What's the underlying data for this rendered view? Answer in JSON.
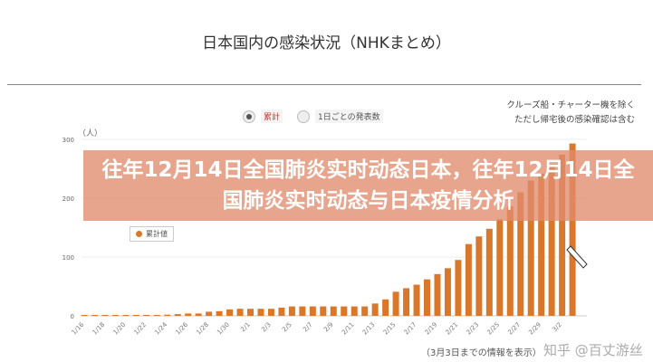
{
  "header": {
    "title": "日本国内の感染状況（NHKまとめ）",
    "note_line1": "クルーズ船・チャーター機を除く",
    "note_line2": "ただし帰宅後の感染確認は含む"
  },
  "toggle": {
    "options": [
      "累計",
      "1日ごとの発表数"
    ],
    "selected": "累計"
  },
  "overlay_title": "往年12月14日全国肺炎实时动态日本，往年12月14日全国肺炎实时动态与日本疫情分析",
  "watermark": "知乎 @百丈游丝",
  "source_note": "（3月3日までの情報を表示）",
  "chart_data": {
    "type": "bar",
    "ylabel": "（人）",
    "ylim": [
      0,
      300
    ],
    "yticks": [
      0,
      100,
      200,
      300
    ],
    "grid": true,
    "legend": {
      "entries": [
        "累計値"
      ],
      "placement": "top-left"
    },
    "bar_color": "#d9772b",
    "xtick_labels": [
      "1/16",
      "1/18",
      "1/20",
      "1/22",
      "1/24",
      "1/26",
      "1/28",
      "1/30",
      "2/1",
      "2/3",
      "2/5",
      "2/7",
      "2/9",
      "2/11",
      "2/13",
      "2/15",
      "2/17",
      "2/19",
      "2/21",
      "2/23",
      "2/25",
      "2/27",
      "2/29",
      "3/2"
    ],
    "categories": [
      "1/16",
      "1/17",
      "1/18",
      "1/19",
      "1/20",
      "1/21",
      "1/22",
      "1/23",
      "1/24",
      "1/25",
      "1/26",
      "1/27",
      "1/28",
      "1/29",
      "1/30",
      "1/31",
      "2/1",
      "2/2",
      "2/3",
      "2/4",
      "2/5",
      "2/6",
      "2/7",
      "2/8",
      "2/9",
      "2/10",
      "2/11",
      "2/12",
      "2/13",
      "2/14",
      "2/15",
      "2/16",
      "2/17",
      "2/18",
      "2/19",
      "2/20",
      "2/21",
      "2/22",
      "2/23",
      "2/24",
      "2/25",
      "2/26",
      "2/27",
      "2/28",
      "2/29",
      "3/1",
      "3/2",
      "3/3"
    ],
    "values": [
      1,
      1,
      1,
      1,
      1,
      1,
      1,
      1,
      2,
      3,
      4,
      4,
      7,
      8,
      11,
      12,
      12,
      12,
      12,
      14,
      16,
      16,
      16,
      16,
      16,
      16,
      16,
      16,
      21,
      28,
      41,
      47,
      53,
      62,
      71,
      81,
      95,
      122,
      135,
      148,
      164,
      186,
      210,
      230,
      242,
      254,
      274,
      293
    ]
  }
}
